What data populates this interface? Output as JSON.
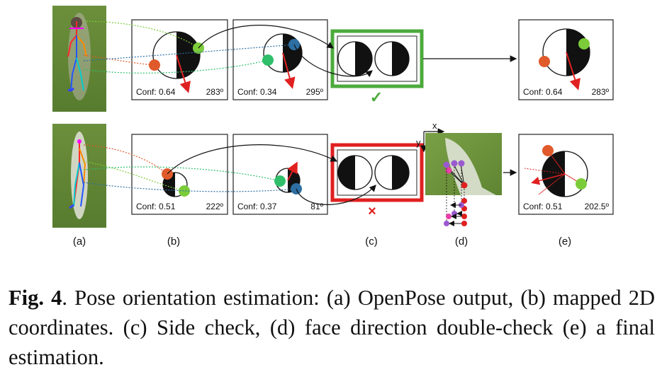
{
  "figure": {
    "row_top": {
      "panel_b1": {
        "conf": "Conf: 0.64",
        "angle": "283º"
      },
      "panel_b2": {
        "conf": "Conf: 0.34",
        "angle": "295º"
      },
      "panel_e": {
        "conf": "Conf: 0.64",
        "angle": "283º"
      },
      "check_mark": "✓"
    },
    "row_bottom": {
      "panel_b1": {
        "conf": "Conf: 0.51",
        "angle": "222º"
      },
      "panel_b2": {
        "conf": "Conf: 0.37",
        "angle": "81º"
      },
      "panel_e": {
        "conf": "Conf: 0.51",
        "angle": "202.5º"
      },
      "cross_mark": "×"
    },
    "axes": {
      "x": "x",
      "y": "y"
    },
    "sublabels": [
      "(a)",
      "(b)",
      "(c)",
      "(d)",
      "(e)"
    ],
    "colors": {
      "orange": "#e05a2b",
      "green": "#7ccc3a",
      "teal": "#2fbf6a",
      "blue": "#2d6fa3",
      "red_arrow": "#e02020",
      "check_green": "#4caa3c",
      "cross_red": "#e02020",
      "grass": "#6a8f3a"
    }
  },
  "caption": {
    "label": "Fig. 4",
    "text": ". Pose orientation estimation: (a) OpenPose output, (b) mapped 2D coordinates.  (c) Side check, (d) face direction double-check (e) a final estimation."
  }
}
